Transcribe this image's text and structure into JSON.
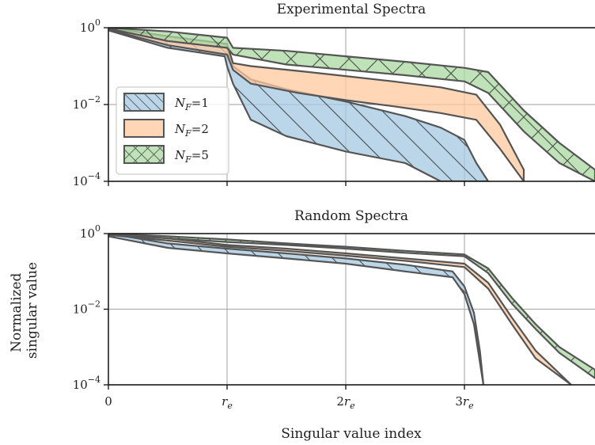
{
  "chart_data": [
    {
      "type": "area",
      "title": "Experimental Spectra",
      "xlabel": "",
      "ylabel": "",
      "yscale": "log",
      "ylim": [
        0.0001,
        1
      ],
      "xticks": [
        "0",
        "r",
        "2r",
        "3r"
      ],
      "xtick_values": [
        0,
        1,
        2,
        3
      ],
      "xlim": [
        0,
        4.1
      ],
      "ytick_labels": [
        {
          "base": "10",
          "exp": "0",
          "value": 1
        },
        {
          "base": "10",
          "exp": "−2",
          "value": 0.01
        },
        {
          "base": "10",
          "exp": "−4",
          "value": 0.0001
        }
      ],
      "grid": true,
      "legend": {
        "placement": "center-left",
        "entries": [
          {
            "main": "N",
            "sub": "F",
            "rest": "=1",
            "color": "#a4c8e2",
            "hatch": "diagonal"
          },
          {
            "main": "N",
            "sub": "F",
            "rest": "=2",
            "color": "#ffc89e",
            "hatch": "none"
          },
          {
            "main": "N",
            "sub": "F",
            "rest": "=5",
            "color": "#a9d8a2",
            "hatch": "crosshatch"
          }
        ]
      },
      "series": [
        {
          "name": "N_F=1",
          "color": "#a4c8e2",
          "hatch": "diagonal",
          "x": [
            0,
            0.5,
            0.98,
            1.0,
            1.05,
            1.2,
            1.5,
            2.0,
            2.5,
            2.8,
            3.0,
            3.1,
            3.2
          ],
          "upper": [
            1,
            0.6,
            0.38,
            0.3,
            0.1,
            0.045,
            0.025,
            0.012,
            0.005,
            0.0025,
            0.0012,
            0.0003,
            0.0001
          ],
          "lower": [
            0.85,
            0.3,
            0.18,
            0.1,
            0.035,
            0.004,
            0.0015,
            0.0006,
            0.0003,
            0.0001,
            0.0001,
            0.0001,
            0.0001
          ]
        },
        {
          "name": "N_F=2",
          "color": "#ffc89e",
          "hatch": "none",
          "x": [
            0,
            0.5,
            1.0,
            1.05,
            1.2,
            1.6,
            2.0,
            2.4,
            2.8,
            3.1,
            3.3,
            3.5
          ],
          "upper": [
            1,
            0.6,
            0.38,
            0.12,
            0.1,
            0.075,
            0.055,
            0.04,
            0.028,
            0.018,
            0.003,
            0.0002
          ],
          "lower": [
            0.9,
            0.35,
            0.2,
            0.08,
            0.035,
            0.02,
            0.013,
            0.009,
            0.006,
            0.004,
            0.0007,
            0.0001
          ]
        },
        {
          "name": "N_F=5",
          "color": "#a9d8a2",
          "hatch": "crosshatch",
          "x": [
            0,
            0.5,
            1.0,
            1.05,
            1.5,
            2.0,
            2.5,
            3.0,
            3.2,
            3.5,
            3.8,
            4.1
          ],
          "upper": [
            1,
            0.8,
            0.55,
            0.3,
            0.25,
            0.18,
            0.13,
            0.09,
            0.07,
            0.007,
            0.001,
            0.0002
          ],
          "lower": [
            0.95,
            0.45,
            0.3,
            0.2,
            0.11,
            0.08,
            0.058,
            0.04,
            0.02,
            0.002,
            0.0003,
            0.0001
          ]
        }
      ]
    },
    {
      "type": "area",
      "title": "Random Spectra",
      "xlabel": "Singular value index",
      "ylabel": "Normalized\nsingular value",
      "ylabel_lines": [
        "Normalized",
        "singular value"
      ],
      "yscale": "log",
      "ylim": [
        0.0001,
        1
      ],
      "xticks": [
        "0",
        "r",
        "2r",
        "3r"
      ],
      "xtick_values": [
        0,
        1,
        2,
        3
      ],
      "xlim": [
        0,
        4.1
      ],
      "ytick_labels": [
        {
          "base": "10",
          "exp": "0",
          "value": 1
        },
        {
          "base": "10",
          "exp": "−2",
          "value": 0.01
        },
        {
          "base": "10",
          "exp": "−4",
          "value": 0.0001
        }
      ],
      "grid": true,
      "series": [
        {
          "name": "N_F=1",
          "color": "#a4c8e2",
          "hatch": "diagonal",
          "x": [
            0,
            0.5,
            1.0,
            1.5,
            2.0,
            2.5,
            2.9,
            3.0,
            3.08,
            3.13,
            3.16
          ],
          "upper": [
            1,
            0.55,
            0.4,
            0.3,
            0.22,
            0.15,
            0.1,
            0.04,
            0.008,
            0.0008,
            0.0001
          ],
          "lower": [
            0.85,
            0.42,
            0.3,
            0.22,
            0.16,
            0.1,
            0.07,
            0.025,
            0.004,
            0.0004,
            0.0001
          ]
        },
        {
          "name": "N_F=2",
          "color": "#ffc89e",
          "hatch": "none",
          "x": [
            0,
            0.5,
            1.0,
            1.5,
            2.0,
            2.5,
            3.0,
            3.2,
            3.4,
            3.6,
            3.9
          ],
          "upper": [
            1,
            0.75,
            0.5,
            0.4,
            0.3,
            0.22,
            0.16,
            0.05,
            0.006,
            0.0008,
            0.0001
          ],
          "lower": [
            0.92,
            0.65,
            0.45,
            0.35,
            0.26,
            0.19,
            0.13,
            0.035,
            0.004,
            0.0005,
            0.0001
          ]
        },
        {
          "name": "N_F=5",
          "color": "#a9d8a2",
          "hatch": "crosshatch",
          "x": [
            0,
            0.5,
            1.0,
            1.5,
            2.0,
            2.5,
            3.0,
            3.2,
            3.4,
            3.6,
            3.8,
            4.1
          ],
          "upper": [
            1,
            0.85,
            0.7,
            0.55,
            0.45,
            0.35,
            0.28,
            0.12,
            0.02,
            0.004,
            0.001,
            0.00025
          ],
          "lower": [
            0.95,
            0.75,
            0.6,
            0.5,
            0.4,
            0.31,
            0.25,
            0.09,
            0.014,
            0.003,
            0.0007,
            0.00015
          ]
        }
      ]
    }
  ]
}
